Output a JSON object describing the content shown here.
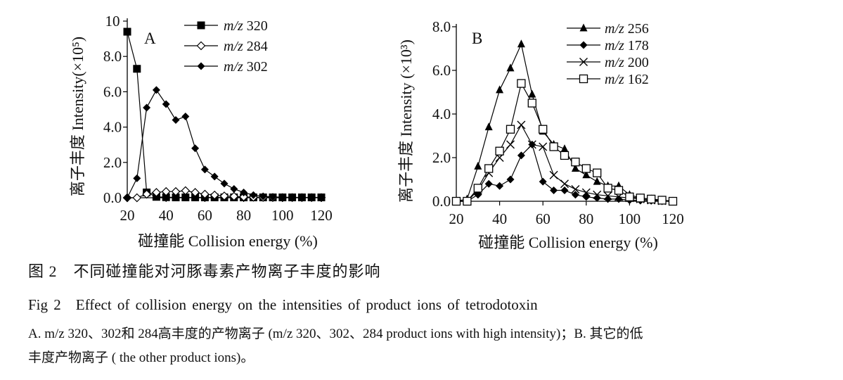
{
  "chart_data": [
    {
      "type": "line",
      "panel_label": "A",
      "xlabel": "碰撞能 Collision energy (%)",
      "ylabel": "离子丰度 Intensity(×10⁵)",
      "xlim": [
        20,
        120
      ],
      "ylim": [
        0,
        10
      ],
      "xticks": [
        20,
        40,
        60,
        80,
        100,
        120
      ],
      "yticks": [
        0,
        2,
        4,
        6,
        8,
        10
      ],
      "ytick_labels": [
        "0.0",
        "2.0",
        "4.0",
        "6.0",
        "8.0",
        "10"
      ],
      "legend_position": "top-right",
      "series": [
        {
          "name": "m/z 320",
          "marker": "filled-square",
          "x": [
            20,
            25,
            30,
            35,
            40,
            45,
            50,
            55,
            60,
            65,
            70,
            75,
            80,
            85,
            90,
            95,
            100,
            105,
            110,
            115,
            120
          ],
          "y": [
            9.4,
            7.3,
            0.3,
            0.05,
            0.03,
            0.02,
            0.02,
            0.02,
            0.02,
            0.02,
            0.02,
            0.02,
            0.02,
            0.02,
            0.02,
            0.02,
            0.02,
            0.02,
            0.02,
            0.02,
            0.02
          ]
        },
        {
          "name": "m/z 284",
          "marker": "open-diamond",
          "x": [
            20,
            25,
            30,
            35,
            40,
            45,
            50,
            55,
            60,
            65,
            70,
            75,
            80,
            85,
            90,
            95,
            100,
            105,
            110,
            115,
            120
          ],
          "y": [
            0.0,
            0.0,
            0.2,
            0.3,
            0.35,
            0.35,
            0.4,
            0.3,
            0.2,
            0.15,
            0.1,
            0.08,
            0.05,
            0.03,
            0.02,
            0.01,
            0.01,
            0.01,
            0.01,
            0.01,
            0.01
          ]
        },
        {
          "name": "m/z 302",
          "marker": "filled-diamond",
          "x": [
            20,
            25,
            30,
            35,
            40,
            45,
            50,
            55,
            60,
            65,
            70,
            75,
            80,
            85,
            90,
            95,
            100,
            105,
            110,
            115,
            120
          ],
          "y": [
            0.0,
            1.1,
            5.1,
            6.1,
            5.3,
            4.4,
            4.6,
            2.8,
            1.6,
            1.2,
            0.8,
            0.5,
            0.3,
            0.15,
            0.08,
            0.05,
            0.03,
            0.02,
            0.01,
            0.01,
            0.0
          ]
        }
      ]
    },
    {
      "type": "line",
      "panel_label": "B",
      "xlabel": "碰撞能 Collision energy (%)",
      "ylabel": "离子丰度 Intensity (×10³)",
      "xlim": [
        20,
        120
      ],
      "ylim": [
        0,
        8
      ],
      "xticks": [
        20,
        40,
        60,
        80,
        100,
        120
      ],
      "yticks": [
        0,
        2,
        4,
        6,
        8
      ],
      "ytick_labels": [
        "0.0",
        "2.0",
        "4.0",
        "6.0",
        "8.0"
      ],
      "legend_position": "top-right",
      "series": [
        {
          "name": "m/z 256",
          "marker": "filled-triangle",
          "x": [
            20,
            25,
            30,
            35,
            40,
            45,
            50,
            55,
            60,
            65,
            70,
            75,
            80,
            85,
            90,
            95,
            100,
            105,
            110,
            115,
            120
          ],
          "y": [
            0.0,
            0.1,
            1.6,
            3.4,
            5.1,
            6.1,
            7.2,
            4.9,
            3.2,
            2.6,
            2.4,
            1.5,
            1.2,
            0.9,
            0.7,
            0.7,
            0.3,
            0.15,
            0.1,
            0.05,
            0.0
          ]
        },
        {
          "name": "m/z 178",
          "marker": "filled-diamond",
          "x": [
            20,
            25,
            30,
            35,
            40,
            45,
            50,
            55,
            60,
            65,
            70,
            75,
            80,
            85,
            90,
            95,
            100,
            105,
            110,
            115,
            120
          ],
          "y": [
            0.0,
            0.0,
            0.3,
            0.8,
            0.7,
            1.0,
            2.1,
            2.6,
            0.9,
            0.5,
            0.5,
            0.3,
            0.2,
            0.15,
            0.1,
            0.1,
            0.05,
            0.03,
            0.02,
            0.0,
            0.0
          ]
        },
        {
          "name": "m/z 200",
          "marker": "x",
          "x": [
            20,
            25,
            30,
            35,
            40,
            45,
            50,
            55,
            60,
            65,
            70,
            75,
            80,
            85,
            90,
            95,
            100,
            105,
            110,
            115,
            120
          ],
          "y": [
            0.0,
            0.0,
            0.5,
            1.3,
            2.0,
            2.6,
            3.5,
            2.6,
            2.5,
            1.2,
            0.8,
            0.55,
            0.4,
            0.3,
            0.25,
            0.2,
            0.15,
            0.1,
            0.05,
            0.02,
            0.0
          ]
        },
        {
          "name": "m/z 162",
          "marker": "open-square",
          "x": [
            20,
            25,
            30,
            35,
            40,
            45,
            50,
            55,
            60,
            65,
            70,
            75,
            80,
            85,
            90,
            95,
            100,
            105,
            110,
            115,
            120
          ],
          "y": [
            0.0,
            0.0,
            0.6,
            1.5,
            2.3,
            3.3,
            5.4,
            4.5,
            3.3,
            2.5,
            2.1,
            1.8,
            1.5,
            1.3,
            0.6,
            0.5,
            0.2,
            0.15,
            0.1,
            0.05,
            0.0
          ]
        }
      ]
    }
  ],
  "captions": {
    "cn": "图 2　不同碰撞能对河豚毒素产物离子丰度的影响",
    "en": "Fig 2　Effect of collision energy on the intensities of product ions of tetrodotoxin",
    "note_line1": "A. m/z 320、302和 284高丰度的产物离子 (m/z 320、302、284 product ions with high intensity)；B. 其它的低",
    "note_line2": "丰度产物离子 ( the other product ions)。"
  }
}
